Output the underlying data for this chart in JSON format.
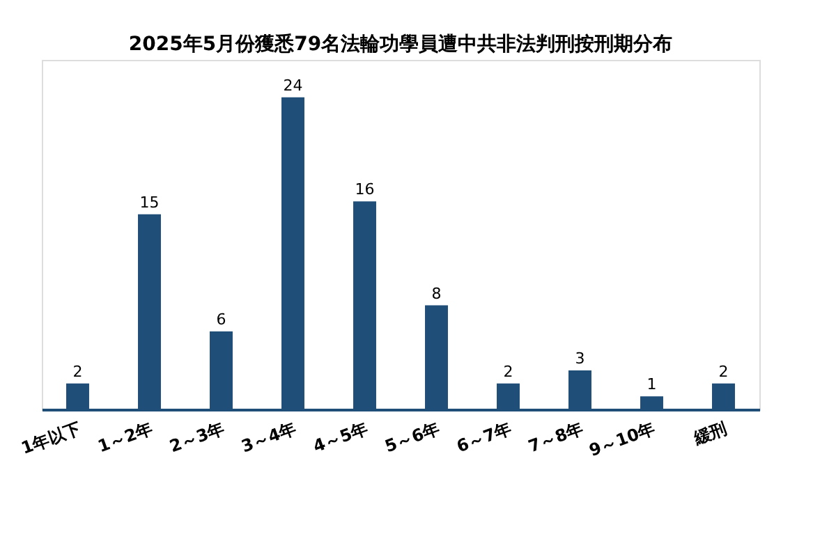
{
  "chart_data": {
    "type": "bar",
    "title": "2025年5月份獲悉79名法輪功學員遭中共非法判刑按刑期分布",
    "categories": [
      "1年以下",
      "1～2年",
      "2～3年",
      "3～4年",
      "4～5年",
      "5～6年",
      "6～7年",
      "7～8年",
      "9～10年",
      "緩刑"
    ],
    "values": [
      2,
      15,
      6,
      24,
      16,
      8,
      2,
      3,
      1,
      2
    ],
    "color": "#1f4e79",
    "data_labels": true
  }
}
